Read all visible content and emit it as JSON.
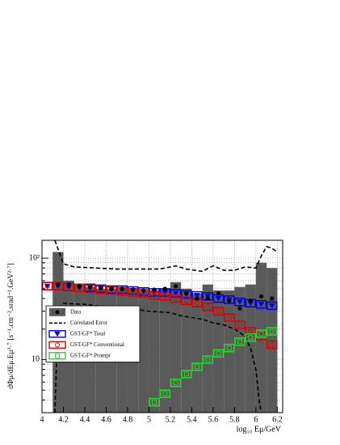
{
  "chart_data": {
    "type": "combo",
    "x_label": "log₁₀ Eμ/GeV",
    "y_label": "dΦμ/dEμ.Eμ³·⁷ [s⁻¹.cm⁻².srad⁻¹.GeV²·⁷]",
    "xlim": [
      4,
      6.25
    ],
    "ylim": [
      3,
      150
    ],
    "log_y": true,
    "grid": true,
    "xticks": [
      4,
      4.2,
      4.4,
      4.6,
      4.8,
      5,
      5.2,
      5.4,
      5.6,
      5.8,
      6,
      6.2
    ],
    "yticks": [
      {
        "value": 10,
        "label": "10"
      },
      {
        "value": 100,
        "label": "10²"
      }
    ],
    "y_minor_ticks": [
      4,
      5,
      6,
      7,
      8,
      9,
      20,
      30,
      40,
      50,
      60,
      70,
      80,
      90
    ],
    "series": [
      {
        "name": "Data",
        "type": "histogram",
        "color": "#000000",
        "bar_color": "#5a5a5a",
        "bins": [
          4.1,
          4.2,
          4.3,
          4.4,
          4.5,
          4.6,
          4.7,
          4.8,
          4.9,
          5.0,
          5.1,
          5.2,
          5.3,
          5.4,
          5.5,
          5.6,
          5.7,
          5.8,
          5.9,
          6.0,
          6.1,
          6.2
        ],
        "bar_values": [
          115,
          60,
          55,
          52,
          50,
          50,
          52,
          50,
          48,
          48,
          50,
          58,
          50,
          45,
          55,
          48,
          48,
          52,
          55,
          90,
          80
        ],
        "x": [
          4.15,
          4.25,
          4.35,
          4.45,
          4.55,
          4.65,
          4.75,
          4.85,
          4.95,
          5.05,
          5.15,
          5.25,
          5.35,
          5.45,
          5.55,
          5.65,
          5.75,
          5.85,
          5.95,
          6.05,
          6.15
        ],
        "values": [
          55,
          55,
          53,
          52,
          51,
          50,
          50,
          49,
          48,
          49,
          50,
          53,
          45,
          40,
          40,
          45,
          38,
          32,
          38,
          42,
          40
        ]
      },
      {
        "name": "Correlated Error",
        "type": "band-lines",
        "color": "#000000",
        "x": [
          4.12,
          4.2,
          4.3,
          4.5,
          4.7,
          4.9,
          5.1,
          5.25,
          5.35,
          5.5,
          5.6,
          5.7,
          5.8,
          5.9,
          6.0,
          6.05,
          6.1,
          6.15,
          6.2
        ],
        "values": [
          150,
          88,
          82,
          80,
          78,
          78,
          78,
          84,
          78,
          74,
          84,
          76,
          76,
          82,
          80,
          105,
          130,
          125,
          115
        ],
        "lower_x": [
          4.12,
          4.15,
          4.2,
          4.4,
          4.6,
          4.8,
          5.0,
          5.2,
          5.3,
          5.5,
          5.6,
          5.7,
          5.8,
          5.9,
          5.95,
          6.0,
          6.03,
          6.05
        ],
        "lower_values": [
          3,
          25,
          36,
          35,
          33,
          32,
          30,
          29,
          27,
          25,
          23,
          22,
          20,
          17,
          13,
          8,
          4,
          3
        ]
      },
      {
        "name": "GST-GF* Total",
        "type": "box",
        "color": "#0000dd",
        "marker": "triangle",
        "x": [
          4.05,
          4.15,
          4.25,
          4.35,
          4.45,
          4.55,
          4.65,
          4.75,
          4.85,
          4.95,
          5.05,
          5.15,
          5.25,
          5.35,
          5.45,
          5.55,
          5.65,
          5.75,
          5.85,
          5.95,
          6.05,
          6.15
        ],
        "values": [
          53,
          53,
          52,
          51,
          51,
          50,
          49,
          49,
          48,
          47,
          46,
          46,
          45,
          44,
          43,
          42,
          40,
          39,
          37,
          36,
          35,
          34
        ]
      },
      {
        "name": "GST-GF* Conventional",
        "type": "box",
        "color": "#dd0000",
        "marker": "circle",
        "x": [
          4.05,
          4.15,
          4.25,
          4.35,
          4.45,
          4.55,
          4.65,
          4.75,
          4.85,
          4.95,
          5.05,
          5.15,
          5.25,
          5.35,
          5.45,
          5.55,
          5.65,
          5.75,
          5.85,
          5.95,
          6.05,
          6.15
        ],
        "values": [
          53,
          53,
          52,
          51,
          50,
          49,
          48,
          47,
          46,
          45,
          43,
          42,
          40,
          38,
          36,
          33,
          30,
          26,
          22,
          19,
          17,
          14
        ]
      },
      {
        "name": "GST-GF* Prompt",
        "type": "box",
        "color": "#22dd22",
        "marker": "square",
        "x": [
          5.05,
          5.15,
          5.25,
          5.35,
          5.45,
          5.55,
          5.65,
          5.75,
          5.85,
          5.95,
          6.05,
          6.15
        ],
        "values": [
          3.8,
          4.6,
          5.9,
          7.2,
          8.5,
          10,
          11.5,
          13,
          15,
          16.5,
          18,
          19
        ]
      }
    ]
  }
}
